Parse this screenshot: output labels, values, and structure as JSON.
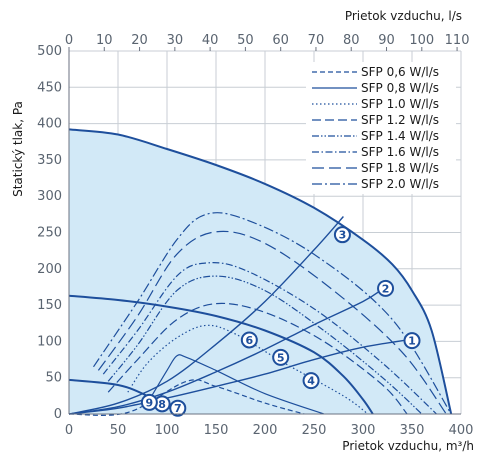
{
  "chart_data": {
    "type": "line",
    "xlabel": "Prietok vzduchu, m³/h",
    "ylabel": "Statický tlak, Pa",
    "top_axis_label": "Prietok vzduchu, l/s",
    "xlim": [
      0,
      400
    ],
    "ylim": [
      0,
      500
    ],
    "x_ticks": [
      "0",
      "50",
      "100",
      "150",
      "200",
      "250",
      "300",
      "350",
      "400"
    ],
    "y_ticks": [
      "0",
      "50",
      "100",
      "150",
      "200",
      "250",
      "300",
      "350",
      "400",
      "450",
      "500"
    ],
    "top_ticks": [
      "0",
      "10",
      "20",
      "30",
      "40",
      "50",
      "60",
      "70",
      "80",
      "90",
      "100",
      "110"
    ],
    "top_tick_values_ls": [
      0,
      10,
      20,
      30,
      40,
      50,
      60,
      70,
      80,
      90,
      100,
      110
    ],
    "grid": true,
    "colors": {
      "main": "#1e4f9c",
      "fill": "#d2e9f7",
      "grid": "#c8ced4"
    },
    "fan_curves": [
      {
        "points": [
          [
            0,
            392
          ],
          [
            50,
            385
          ],
          [
            100,
            365
          ],
          [
            150,
            343
          ],
          [
            200,
            317
          ],
          [
            250,
            284
          ],
          [
            300,
            240
          ],
          [
            330,
            206
          ],
          [
            350,
            170
          ],
          [
            370,
            115
          ],
          [
            390,
            0
          ]
        ]
      },
      {
        "points": [
          [
            0,
            163
          ],
          [
            50,
            157
          ],
          [
            100,
            148
          ],
          [
            150,
            135
          ],
          [
            200,
            115
          ],
          [
            250,
            85
          ],
          [
            280,
            52
          ],
          [
            300,
            20
          ],
          [
            310,
            0
          ]
        ]
      },
      {
        "points": [
          [
            0,
            47
          ],
          [
            50,
            40
          ],
          [
            80,
            25
          ],
          [
            100,
            10
          ],
          [
            115,
            0
          ]
        ]
      }
    ],
    "system_curves": [
      {
        "points": [
          [
            0,
            0
          ],
          [
            50,
            8
          ],
          [
            100,
            22
          ],
          [
            150,
            38
          ],
          [
            200,
            55
          ],
          [
            250,
            75
          ],
          [
            300,
            92
          ],
          [
            350,
            103
          ]
        ]
      },
      {
        "points": [
          [
            0,
            0
          ],
          [
            50,
            10
          ],
          [
            100,
            30
          ],
          [
            150,
            58
          ],
          [
            200,
            89
          ],
          [
            250,
            123
          ],
          [
            300,
            155
          ],
          [
            320,
            172
          ]
        ]
      },
      {
        "points": [
          [
            0,
            0
          ],
          [
            50,
            15
          ],
          [
            100,
            45
          ],
          [
            150,
            96
          ],
          [
            200,
            155
          ],
          [
            250,
            226
          ],
          [
            280,
            272
          ]
        ]
      }
    ],
    "sfp_series": [
      {
        "name": "SFP 0,6 W/l/s",
        "dash": "5,3",
        "width": 1.2,
        "points": [
          [
            0,
            0
          ],
          [
            60,
            2
          ],
          [
            120,
            45
          ],
          [
            150,
            38
          ],
          [
            200,
            15
          ],
          [
            240,
            0
          ]
        ]
      },
      {
        "name": "SFP 0,8 W/l/s",
        "dash": "",
        "width": 1.2,
        "points": [
          [
            80,
            15
          ],
          [
            100,
            60
          ],
          [
            110,
            80
          ],
          [
            120,
            78
          ],
          [
            150,
            60
          ],
          [
            200,
            28
          ],
          [
            260,
            0
          ]
        ]
      },
      {
        "name": "SFP 1.0 W/l/s",
        "dash": "1.5,2.5",
        "width": 1.2,
        "points": [
          [
            60,
            30
          ],
          [
            80,
            70
          ],
          [
            110,
            105
          ],
          [
            140,
            122
          ],
          [
            170,
            110
          ],
          [
            220,
            70
          ],
          [
            280,
            25
          ],
          [
            305,
            0
          ]
        ]
      },
      {
        "name": "SFP 1.2 W/l/s",
        "dash": "9,4",
        "width": 1.2,
        "points": [
          [
            40,
            30
          ],
          [
            70,
            75
          ],
          [
            110,
            130
          ],
          [
            150,
            152
          ],
          [
            200,
            140
          ],
          [
            260,
            100
          ],
          [
            320,
            40
          ],
          [
            345,
            0
          ]
        ]
      },
      {
        "name": "SFP 1.4 W/l/s",
        "dash": "7,2,1.5,2,1.5,2",
        "width": 1.2,
        "points": [
          [
            40,
            45
          ],
          [
            70,
            95
          ],
          [
            110,
            170
          ],
          [
            150,
            190
          ],
          [
            200,
            170
          ],
          [
            260,
            115
          ],
          [
            320,
            50
          ],
          [
            360,
            0
          ]
        ]
      },
      {
        "name": "SFP 1.6 W/l/s",
        "dash": "7,2.5,1.5,2.5",
        "width": 1.2,
        "points": [
          [
            35,
            55
          ],
          [
            70,
            115
          ],
          [
            110,
            190
          ],
          [
            140,
            208
          ],
          [
            180,
            198
          ],
          [
            250,
            145
          ],
          [
            320,
            70
          ],
          [
            375,
            0
          ]
        ]
      },
      {
        "name": "SFP 1.8 W/l/s",
        "dash": "12,5",
        "width": 1.2,
        "points": [
          [
            30,
            60
          ],
          [
            70,
            135
          ],
          [
            110,
            220
          ],
          [
            150,
            251
          ],
          [
            200,
            235
          ],
          [
            270,
            170
          ],
          [
            340,
            85
          ],
          [
            385,
            0
          ]
        ]
      },
      {
        "name": "SFP 2.0 W/l/s",
        "dash": "10,3,2,3",
        "width": 1.2,
        "points": [
          [
            25,
            65
          ],
          [
            70,
            155
          ],
          [
            110,
            240
          ],
          [
            140,
            275
          ],
          [
            180,
            268
          ],
          [
            250,
            220
          ],
          [
            330,
            130
          ],
          [
            390,
            0
          ]
        ]
      }
    ],
    "markers": [
      {
        "label": "1",
        "x": 350,
        "y": 101
      },
      {
        "label": "2",
        "x": 323,
        "y": 173
      },
      {
        "label": "3",
        "x": 279,
        "y": 247
      },
      {
        "label": "4",
        "x": 247,
        "y": 46
      },
      {
        "label": "5",
        "x": 216,
        "y": 78
      },
      {
        "label": "6",
        "x": 184,
        "y": 102
      },
      {
        "label": "7",
        "x": 111,
        "y": 8
      },
      {
        "label": "8",
        "x": 95,
        "y": 14
      },
      {
        "label": "9",
        "x": 82,
        "y": 16
      }
    ]
  }
}
